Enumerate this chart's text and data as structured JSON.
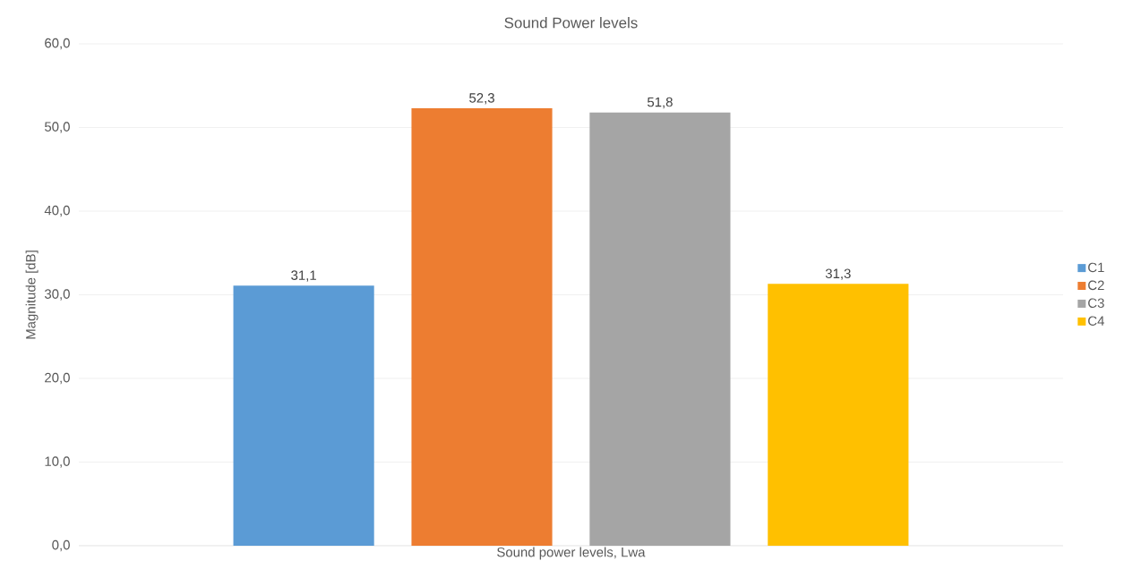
{
  "chart_data": {
    "type": "bar",
    "title": "Sound Power levels",
    "ylabel": "Magnitude [dB]",
    "categories": [
      "Sound power levels, Lwa"
    ],
    "series": [
      {
        "name": "C1",
        "color": "#5b9bd5",
        "values": [
          31.1
        ],
        "value_labels": [
          "31,1"
        ]
      },
      {
        "name": "C2",
        "color": "#ed7d31",
        "values": [
          52.3
        ],
        "value_labels": [
          "52,3"
        ]
      },
      {
        "name": "C3",
        "color": "#a5a5a5",
        "values": [
          51.8
        ],
        "value_labels": [
          "51,8"
        ]
      },
      {
        "name": "C4",
        "color": "#ffc000",
        "values": [
          31.3
        ],
        "value_labels": [
          "31,3"
        ]
      }
    ],
    "ylim": [
      0,
      60
    ],
    "yticks": [
      {
        "value": 0,
        "label": "0,0"
      },
      {
        "value": 10,
        "label": "10,0"
      },
      {
        "value": 20,
        "label": "20,0"
      },
      {
        "value": 30,
        "label": "30,0"
      },
      {
        "value": 40,
        "label": "40,0"
      },
      {
        "value": 50,
        "label": "50,0"
      },
      {
        "value": 60,
        "label": "60,0"
      }
    ],
    "grid": "y",
    "legend": "right"
  }
}
